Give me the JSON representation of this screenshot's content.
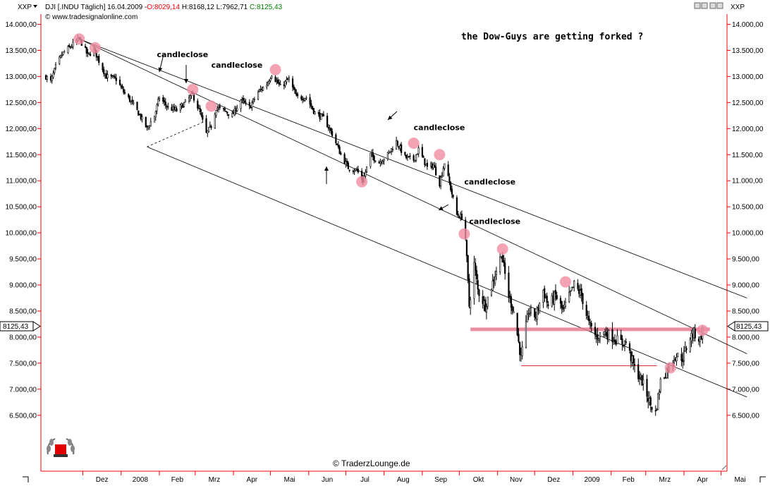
{
  "header": {
    "symbol_left": "XXP",
    "symbol_right": "XXP",
    "instrument": "DJI [.INDU  Täglich] 16.04.2009 -",
    "open_label": "O:8029,14",
    "high_low_label": "H:8168,12 L:7962,71",
    "close_label": "C:8125,43",
    "source": "© www.tradesignalonline.com"
  },
  "watermark": "© TraderzLounge.de",
  "price_badge_left": "8125,43",
  "price_badge_right": "8125,43",
  "colors": {
    "up": "#008000",
    "down": "#ff0000",
    "marker": "#f08ca0",
    "support_line": "#e87890",
    "axis": "#ff0000"
  },
  "chart_data": {
    "type": "candlestick",
    "title": "the Dow-Guys are getting forked ?",
    "y_ticks": [
      6500,
      7000,
      7500,
      8000,
      8500,
      9000,
      9500,
      10000,
      10500,
      11000,
      11500,
      12000,
      12500,
      13000,
      13500,
      14000
    ],
    "ylim": [
      6330,
      14080
    ],
    "x_ticks": [
      {
        "label": "Dez",
        "date": "2007-12-01"
      },
      {
        "label": "2008",
        "date": "2008-01-01"
      },
      {
        "label": "Feb",
        "date": "2008-02-01"
      },
      {
        "label": "Mrz",
        "date": "2008-03-01"
      },
      {
        "label": "Apr",
        "date": "2008-04-01"
      },
      {
        "label": "Mai",
        "date": "2008-05-01"
      },
      {
        "label": "Jun",
        "date": "2008-06-01"
      },
      {
        "label": "Jul",
        "date": "2008-07-01"
      },
      {
        "label": "Aug",
        "date": "2008-08-01"
      },
      {
        "label": "Sep",
        "date": "2008-09-01"
      },
      {
        "label": "Okt",
        "date": "2008-10-01"
      },
      {
        "label": "Nov",
        "date": "2008-11-01"
      },
      {
        "label": "Dez",
        "date": "2008-12-01"
      },
      {
        "label": "2009",
        "date": "2009-01-01"
      },
      {
        "label": "Feb",
        "date": "2009-02-01"
      },
      {
        "label": "Mrz",
        "date": "2009-03-01"
      },
      {
        "label": "Apr",
        "date": "2009-04-01"
      },
      {
        "label": "Mai",
        "date": "2009-05-01"
      }
    ],
    "price_path": [
      [
        "2007-11-01",
        13000
      ],
      [
        "2007-11-05",
        12900
      ],
      [
        "2007-11-10",
        13250
      ],
      [
        "2007-11-15",
        13450
      ],
      [
        "2007-11-20",
        13550
      ],
      [
        "2007-11-25",
        13650
      ],
      [
        "2007-11-28",
        13720
      ],
      [
        "2007-12-01",
        13600
      ],
      [
        "2007-12-05",
        13400
      ],
      [
        "2007-12-10",
        13520
      ],
      [
        "2007-12-14",
        13300
      ],
      [
        "2007-12-20",
        13000
      ],
      [
        "2007-12-28",
        12950
      ],
      [
        "2008-01-03",
        12700
      ],
      [
        "2008-01-08",
        12550
      ],
      [
        "2008-01-15",
        12300
      ],
      [
        "2008-01-22",
        12000
      ],
      [
        "2008-01-28",
        12250
      ],
      [
        "2008-02-01",
        12600
      ],
      [
        "2008-02-08",
        12400
      ],
      [
        "2008-02-15",
        12350
      ],
      [
        "2008-02-22",
        12500
      ],
      [
        "2008-02-28",
        12650
      ],
      [
        "2008-03-05",
        12300
      ],
      [
        "2008-03-10",
        11900
      ],
      [
        "2008-03-14",
        12050
      ],
      [
        "2008-03-18",
        12400
      ],
      [
        "2008-03-24",
        12350
      ],
      [
        "2008-03-31",
        12250
      ],
      [
        "2008-04-07",
        12550
      ],
      [
        "2008-04-14",
        12400
      ],
      [
        "2008-04-21",
        12700
      ],
      [
        "2008-04-28",
        12850
      ],
      [
        "2008-05-02",
        13050
      ],
      [
        "2008-05-09",
        12800
      ],
      [
        "2008-05-16",
        12950
      ],
      [
        "2008-05-22",
        12600
      ],
      [
        "2008-05-30",
        12600
      ],
      [
        "2008-06-06",
        12300
      ],
      [
        "2008-06-13",
        12200
      ],
      [
        "2008-06-20",
        11900
      ],
      [
        "2008-06-27",
        11500
      ],
      [
        "2008-07-03",
        11250
      ],
      [
        "2008-07-10",
        11200
      ],
      [
        "2008-07-15",
        11000
      ],
      [
        "2008-07-21",
        11500
      ],
      [
        "2008-07-28",
        11350
      ],
      [
        "2008-08-04",
        11500
      ],
      [
        "2008-08-11",
        11750
      ],
      [
        "2008-08-18",
        11450
      ],
      [
        "2008-08-25",
        11400
      ],
      [
        "2008-08-29",
        11600
      ],
      [
        "2008-09-05",
        11250
      ],
      [
        "2008-09-10",
        11300
      ],
      [
        "2008-09-15",
        10950
      ],
      [
        "2008-09-19",
        11350
      ],
      [
        "2008-09-24",
        10850
      ],
      [
        "2008-09-29",
        10350
      ],
      [
        "2008-10-03",
        10300
      ],
      [
        "2008-10-06",
        9900
      ],
      [
        "2008-10-09",
        8600
      ],
      [
        "2008-10-13",
        9400
      ],
      [
        "2008-10-16",
        8900
      ],
      [
        "2008-10-22",
        8600
      ],
      [
        "2008-10-28",
        9050
      ],
      [
        "2008-11-04",
        9600
      ],
      [
        "2008-11-10",
        8800
      ],
      [
        "2008-11-14",
        8500
      ],
      [
        "2008-11-20",
        7600
      ],
      [
        "2008-11-26",
        8500
      ],
      [
        "2008-12-02",
        8400
      ],
      [
        "2008-12-08",
        8900
      ],
      [
        "2008-12-12",
        8600
      ],
      [
        "2008-12-18",
        8800
      ],
      [
        "2008-12-24",
        8500
      ],
      [
        "2009-01-02",
        9000
      ],
      [
        "2009-01-08",
        8800
      ],
      [
        "2009-01-14",
        8250
      ],
      [
        "2009-01-20",
        8000
      ],
      [
        "2009-01-26",
        8100
      ],
      [
        "2009-02-02",
        8000
      ],
      [
        "2009-02-09",
        7900
      ],
      [
        "2009-02-13",
        7900
      ],
      [
        "2009-02-20",
        7400
      ],
      [
        "2009-02-26",
        7150
      ],
      [
        "2009-03-05",
        6700
      ],
      [
        "2009-03-09",
        6550
      ],
      [
        "2009-03-13",
        7150
      ],
      [
        "2009-03-19",
        7400
      ],
      [
        "2009-03-25",
        7650
      ],
      [
        "2009-03-31",
        7600
      ],
      [
        "2009-04-06",
        8000
      ],
      [
        "2009-04-09",
        8080
      ],
      [
        "2009-04-14",
        7950
      ],
      [
        "2009-04-16",
        8125
      ]
    ],
    "forks": [
      {
        "p1": [
          "2007-11-28",
          13720
        ],
        "p2": [
          "2009-05-22",
          8750
        ]
      },
      {
        "p1": [
          "2007-11-28",
          13720
        ],
        "p2": [
          "2009-05-22",
          7680
        ]
      },
      {
        "p1": [
          "2008-01-22",
          11650
        ],
        "p2": [
          "2009-05-22",
          6850
        ]
      }
    ],
    "fork_dashed": {
      "p1": [
        "2008-01-22",
        11650
      ],
      "p2": [
        "2008-03-10",
        12150
      ]
    },
    "support_thick": {
      "from": "2008-10-10",
      "to": "2009-04-22",
      "value": 8150
    },
    "support_thin": {
      "from": "2008-11-20",
      "to": "2009-03-10",
      "value": 7450
    },
    "markers": [
      [
        "2007-11-28",
        13720
      ],
      [
        "2007-12-11",
        13550
      ],
      [
        "2008-02-28",
        12750
      ],
      [
        "2008-03-14",
        12430
      ],
      [
        "2008-05-05",
        13130
      ],
      [
        "2008-07-14",
        10980
      ],
      [
        "2008-08-25",
        11720
      ],
      [
        "2008-09-15",
        11500
      ],
      [
        "2008-10-05",
        9980
      ],
      [
        "2008-11-05",
        9690
      ],
      [
        "2008-12-26",
        9060
      ],
      [
        "2009-03-21",
        7410
      ],
      [
        "2009-04-16",
        8130
      ]
    ],
    "annotations": [
      {
        "text": "candleclose",
        "date": "2008-01-30",
        "value": 13370
      },
      {
        "text": "candleclose",
        "date": "2008-03-14",
        "value": 13170
      },
      {
        "text": "candleclose",
        "date": "2008-08-25",
        "value": 11970
      },
      {
        "text": "candleclose",
        "date": "2008-10-05",
        "value": 10930
      },
      {
        "text": "candleclose",
        "date": "2008-10-09",
        "value": 10170
      }
    ]
  }
}
